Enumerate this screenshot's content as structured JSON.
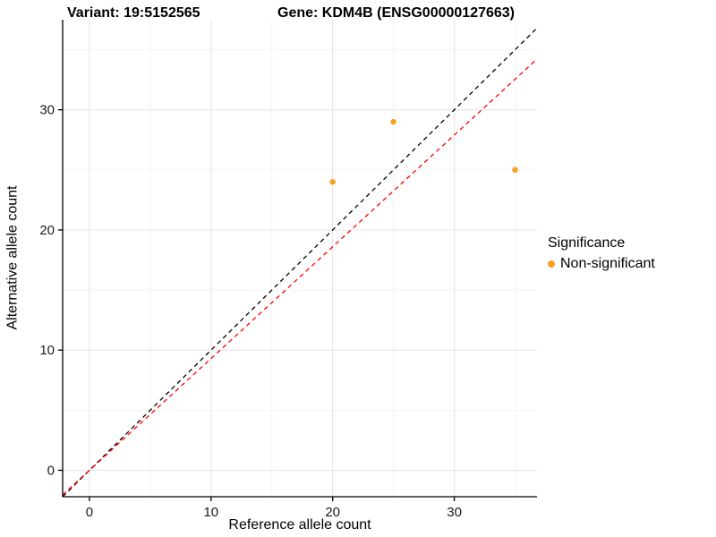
{
  "chart_data": {
    "type": "scatter",
    "title_left": "Variant: 19:5152565",
    "title_right": "Gene: KDM4B (ENSG00000127663)",
    "xlabel": "Reference allele count",
    "ylabel": "Alternative allele count",
    "xlim": [
      -2.2,
      36.8
    ],
    "ylim": [
      -2.2,
      37.5
    ],
    "xticks": [
      0,
      10,
      20,
      30
    ],
    "yticks": [
      0,
      10,
      20,
      30
    ],
    "grid": true,
    "series": [
      {
        "name": "Non-significant",
        "color": "#F9A01F",
        "points": [
          {
            "x": 20,
            "y": 24
          },
          {
            "x": 25,
            "y": 29
          },
          {
            "x": 35,
            "y": 25
          }
        ]
      }
    ],
    "lines": [
      {
        "name": "identity-line",
        "slope": 1,
        "intercept": 0,
        "color": "#000000",
        "style": "dashed"
      },
      {
        "name": "fit-line",
        "slope": 0.93,
        "intercept": 0,
        "color": "#FF0000",
        "style": "dashed"
      }
    ],
    "legend": {
      "title": "Significance",
      "position": "right",
      "entries": [
        {
          "label": "Non-significant",
          "color": "#F9A01F"
        }
      ]
    },
    "colors": {
      "grid_major": "#E4E4E4",
      "grid_minor": "#F2F2F2",
      "axis": "#000000",
      "tick_label": "#1A1A1A"
    }
  }
}
